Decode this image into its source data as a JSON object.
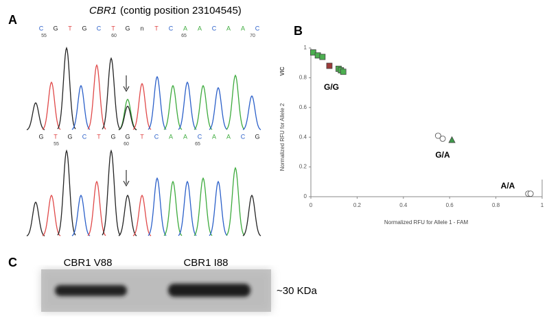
{
  "panel_a": {
    "letter": "A",
    "gene": "CBR1",
    "title": "(contig position 23104545)",
    "top_bases": [
      "C",
      "G",
      "T",
      "G",
      "C",
      "T",
      "G",
      "n",
      "T",
      "C",
      "A",
      "A",
      "C",
      "A",
      "A",
      "C"
    ],
    "top_numbers": [
      55,
      60,
      65,
      70
    ],
    "bottom_bases": [
      "G",
      "T",
      "G",
      "C",
      "T",
      "G",
      "G",
      "T",
      "C",
      "A",
      "A",
      "C",
      "A",
      "A",
      "C",
      "G"
    ],
    "bottom_numbers": [
      55,
      60,
      65
    ]
  },
  "chart_data": {
    "type": "scatter",
    "letter": "B",
    "x_label": "Normalized RFU for Allele 1 - FAM",
    "y_label": "Normalized RFU for Allele 2",
    "y_label_extra": "VIC",
    "xlim": [
      0,
      1
    ],
    "ylim": [
      0,
      1
    ],
    "xticks": [
      0,
      0.2,
      0.4,
      0.6,
      0.8,
      1
    ],
    "yticks": [
      0,
      0.2,
      0.4,
      0.6,
      0.8,
      1
    ],
    "annotations": [
      "G/G",
      "G/A",
      "A/A"
    ],
    "series": [
      {
        "color": "#4caf50",
        "marker": "square",
        "x": [
          0.01,
          0.03,
          0.05,
          0.12,
          0.13,
          0.14
        ],
        "values": [
          0.97,
          0.95,
          0.94,
          0.86,
          0.85,
          0.84
        ]
      },
      {
        "color": "#9c3a3a",
        "marker": "square",
        "x": [
          0.08
        ],
        "values": [
          0.88
        ]
      },
      {
        "color": "#ffffff",
        "marker": "circle",
        "x": [
          0.55,
          0.57,
          0.94,
          0.95
        ],
        "values": [
          0.41,
          0.39,
          0.02,
          0.02
        ]
      },
      {
        "color": "#3e9a4a",
        "marker": "triangle",
        "x": [
          0.61
        ],
        "values": [
          0.38
        ]
      }
    ]
  },
  "panel_c": {
    "letter": "C",
    "lanes": [
      "CBR1 V88",
      "CBR1 I88"
    ],
    "size_label": "~30 KDa"
  }
}
